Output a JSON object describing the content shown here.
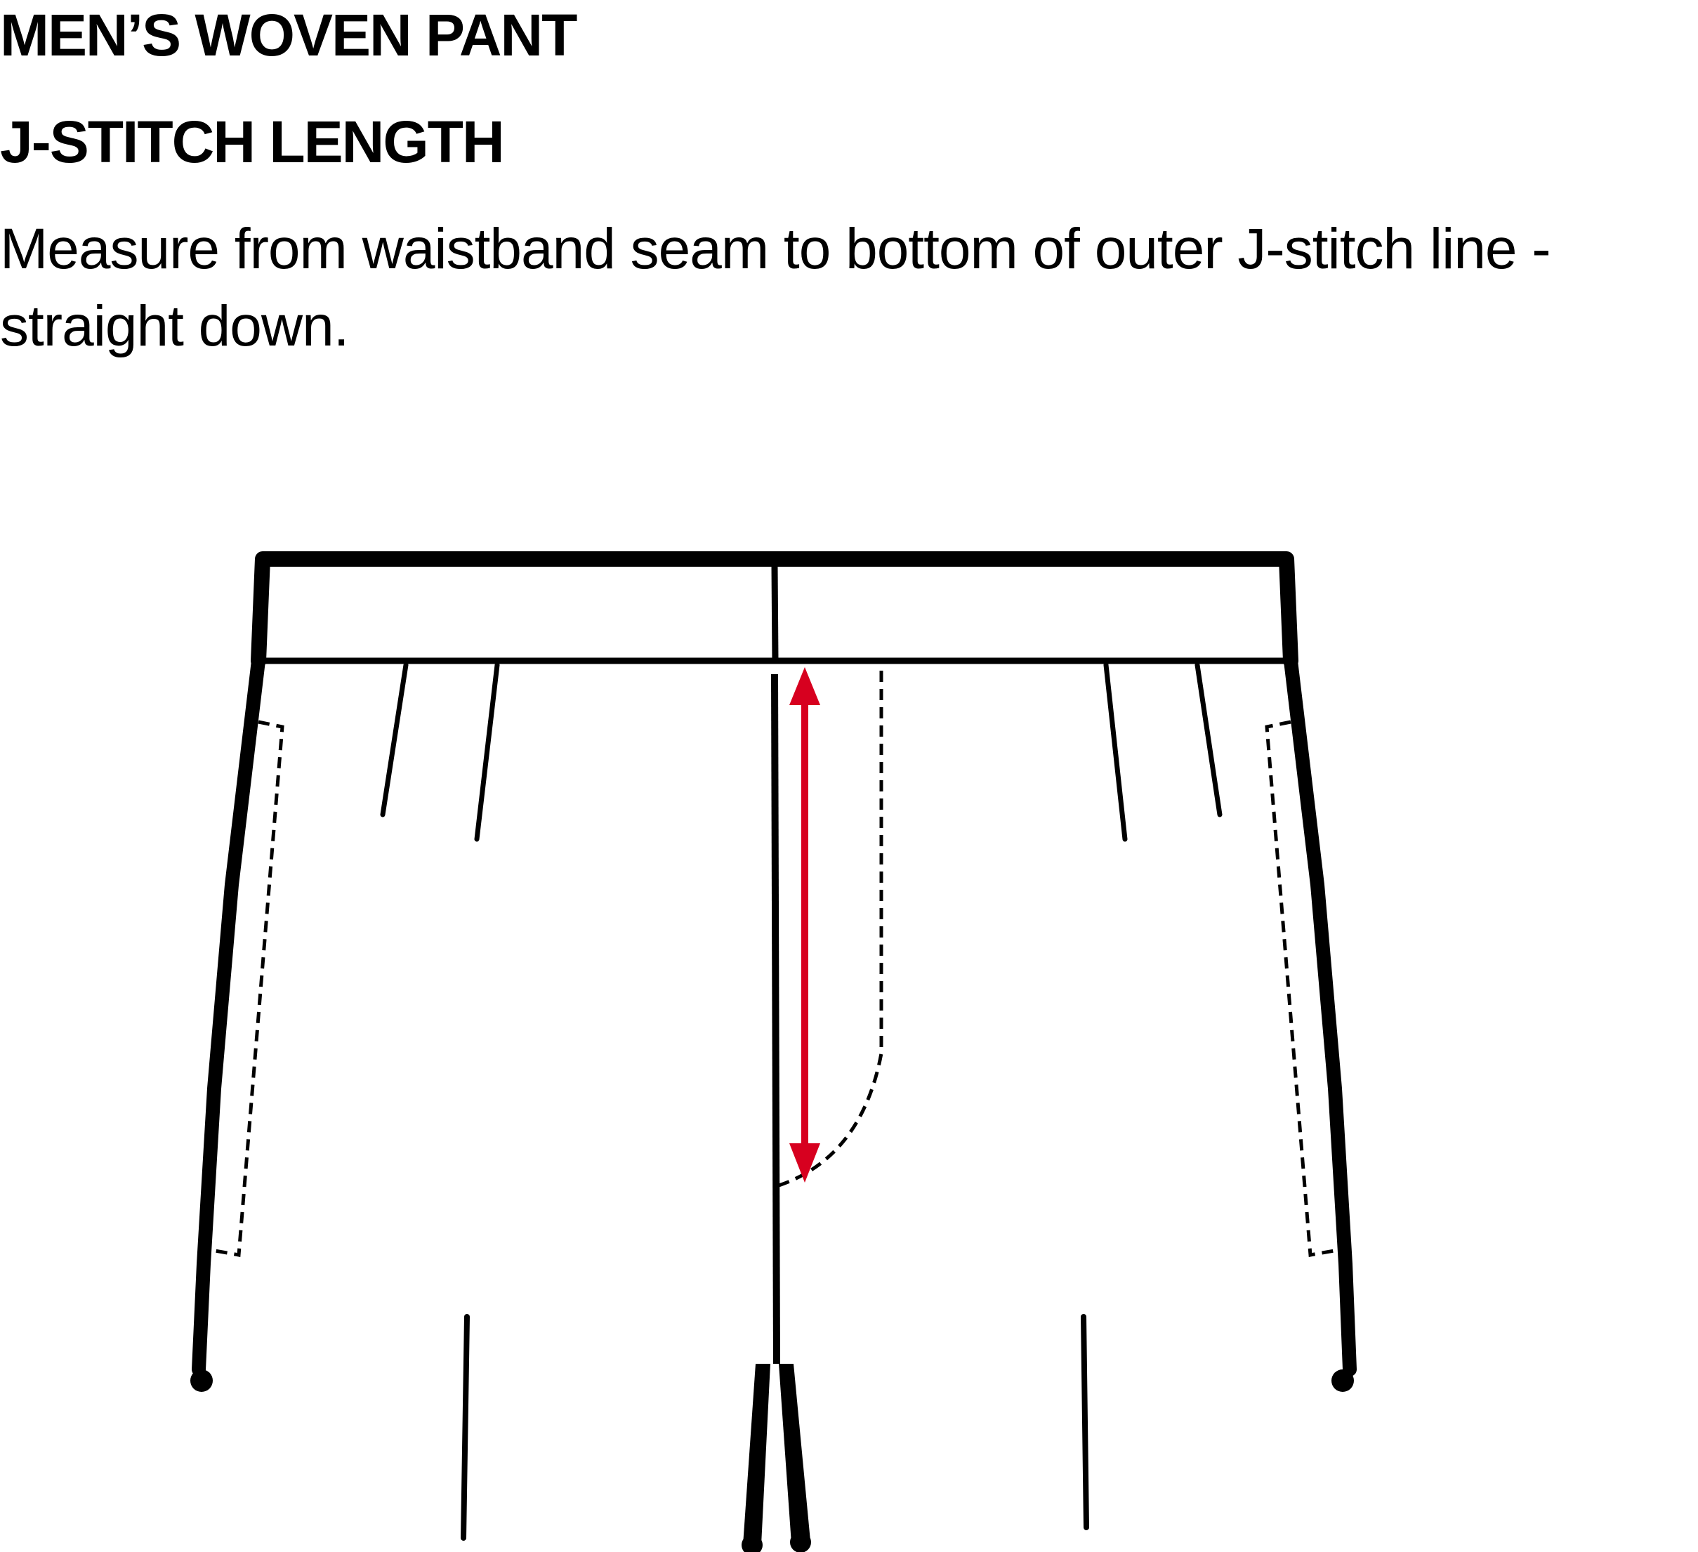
{
  "header": {
    "title": "MEN’S WOVEN PANT",
    "subtitle": "J-STITCH LENGTH"
  },
  "instruction": {
    "text": "Measure from waistband seam to bottom of outer J-stitch line - straight down."
  },
  "colors": {
    "outline": "#000000",
    "measure_arrow": "#d7001f",
    "background": "#ffffff"
  }
}
